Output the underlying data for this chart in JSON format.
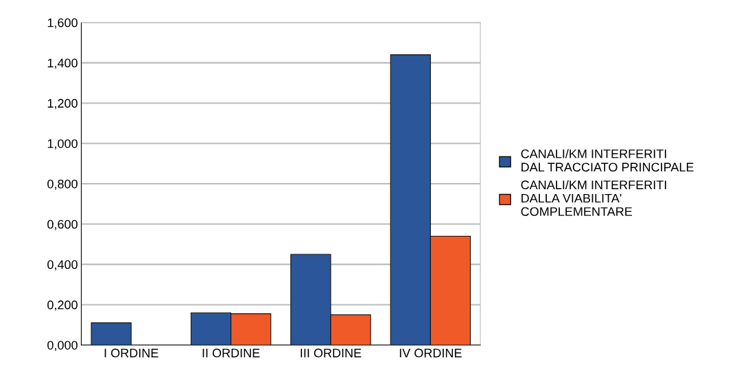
{
  "chart_data": {
    "type": "bar",
    "categories": [
      "I ORDINE",
      "II ORDINE",
      "III ORDINE",
      "IV ORDINE"
    ],
    "series": [
      {
        "name": "CANALI/KM INTERFERITI DAL TRACCIATO PRINCIPALE",
        "color": "#2b579a",
        "values": [
          0.11,
          0.16,
          0.45,
          1.44
        ]
      },
      {
        "name": "CANALI/KM INTERFERITI DALLA VIABILITA' COMPLEMENTARE",
        "color": "#f05a28",
        "values": [
          null,
          0.155,
          0.15,
          0.54
        ]
      }
    ],
    "ylim": [
      0,
      1.6
    ],
    "yticks": [
      {
        "value": 0,
        "label": "0,000"
      },
      {
        "value": 0.2,
        "label": "0,200"
      },
      {
        "value": 0.4,
        "label": "0,400"
      },
      {
        "value": 0.6,
        "label": "0,600"
      },
      {
        "value": 0.8,
        "label": "0,800"
      },
      {
        "value": 1.0,
        "label": "1,000"
      },
      {
        "value": 1.2,
        "label": "1,200"
      },
      {
        "value": 1.4,
        "label": "1,400"
      },
      {
        "value": 1.6,
        "label": "1,600"
      }
    ],
    "grid": "y",
    "legend": "right"
  }
}
